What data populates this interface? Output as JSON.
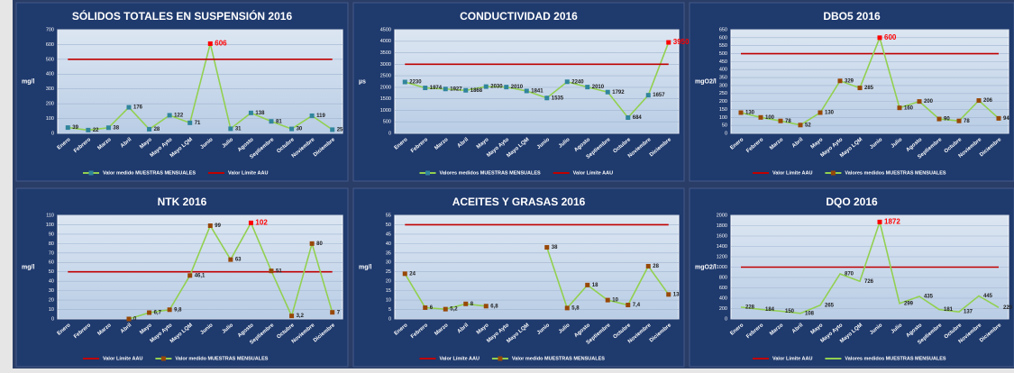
{
  "chart_data": [
    {
      "type": "line",
      "title": "SÓLIDOS TOTALES EN SUSPENSIÓN 2016",
      "y_label": "mg/l",
      "categories": [
        "Enero",
        "Febrero",
        "Marzo",
        "Abril",
        "Mayo",
        "Mayo Ayto",
        "Mayo LQM",
        "Junio",
        "Julio",
        "Agosto",
        "Septiembre",
        "Octubre",
        "Noviembre",
        "Diciembre"
      ],
      "ylim": [
        0,
        700
      ],
      "yticks": [
        0,
        100,
        200,
        300,
        400,
        500,
        600,
        700
      ],
      "series": [
        {
          "name": "Valor medido MUESTRAS MENSUALES",
          "color": "#92d050",
          "marker_color": "#31859c",
          "highlight_color": "#ff0000",
          "values": [
            39,
            22,
            38,
            176,
            28,
            122,
            71,
            606,
            31,
            138,
            81,
            30,
            119,
            25
          ]
        },
        {
          "name": "Valor Límite AAU",
          "color": "#c00000",
          "values": [
            500,
            500,
            500,
            500,
            500,
            500,
            500,
            500,
            500,
            500,
            500,
            500,
            500,
            500
          ]
        }
      ]
    },
    {
      "type": "line",
      "title": "CONDUCTIVIDAD 2016",
      "y_label": "µs",
      "categories": [
        "Enero",
        "Febrero",
        "Marzo",
        "Abril",
        "Mayo",
        "Mayo Ayto",
        "Mayo LQM",
        "Junio",
        "Julio",
        "Agosto",
        "Septiembre",
        "Octubre",
        "Noviembre",
        "Diciembre"
      ],
      "ylim": [
        0,
        4500
      ],
      "yticks": [
        0,
        500,
        1000,
        1500,
        2000,
        2500,
        3000,
        3500,
        4000,
        4500
      ],
      "series": [
        {
          "name": "Valores medidos MUESTRAS MENSUALES",
          "color": "#92d050",
          "marker_color": "#31859c",
          "highlight_color": "#ff0000",
          "values": [
            2230,
            1974,
            1927,
            1868,
            2030,
            2010,
            1841,
            1535,
            2240,
            2010,
            1792,
            684,
            1657,
            3950
          ]
        },
        {
          "name": "Valor Límite AAU",
          "color": "#c00000",
          "values": [
            3000,
            3000,
            3000,
            3000,
            3000,
            3000,
            3000,
            3000,
            3000,
            3000,
            3000,
            3000,
            3000,
            3000
          ]
        }
      ]
    },
    {
      "type": "line",
      "title": "DBO5 2016",
      "y_label": "mgO2/l",
      "categories": [
        "Enero",
        "Febrero",
        "Marzo",
        "Abril",
        "Mayo",
        "Mayo Ayto",
        "Mayo LQM",
        "Junio",
        "Julio",
        "Agosto",
        "Septiembre",
        "Octubre",
        "Noviembre",
        "Diciembre"
      ],
      "ylim": [
        0,
        650
      ],
      "yticks": [
        0,
        50,
        100,
        150,
        200,
        250,
        300,
        350,
        400,
        450,
        500,
        550,
        600,
        650
      ],
      "series": [
        {
          "name": "Valor Límite AAU",
          "color": "#c00000",
          "values": [
            500,
            500,
            500,
            500,
            500,
            500,
            500,
            500,
            500,
            500,
            500,
            500,
            500,
            500
          ]
        },
        {
          "name": "Valores medidos MUESTRAS MENSUALES",
          "color": "#92d050",
          "marker_color": "#984807",
          "highlight_color": "#ff0000",
          "values": [
            130,
            100,
            78,
            52,
            130,
            329,
            285,
            600,
            160,
            200,
            90,
            78,
            206,
            94
          ]
        }
      ]
    },
    {
      "type": "line",
      "title": "NTK 2016",
      "y_label": "mg/l",
      "categories": [
        "Enero",
        "Febrero",
        "Marzo",
        "Abril",
        "Mayo",
        "Mayo Ayto",
        "Mayo LQM",
        "Junio",
        "Julio",
        "Agosto",
        "Septiembre",
        "Octubre",
        "Noviembre",
        "Diciembre"
      ],
      "ylim": [
        0,
        110
      ],
      "yticks": [
        0,
        10,
        20,
        30,
        40,
        50,
        60,
        70,
        80,
        90,
        100,
        110
      ],
      "series": [
        {
          "name": "Valor Límite AAU",
          "color": "#c00000",
          "values": [
            50,
            50,
            50,
            50,
            50,
            50,
            50,
            50,
            50,
            50,
            50,
            50,
            50,
            50
          ]
        },
        {
          "name": "Valor medido MUESTRAS MENSUALES",
          "color": "#92d050",
          "marker_color": "#984807",
          "highlight_color": "#ff0000",
          "values": [
            null,
            null,
            null,
            0,
            6.7,
            9.8,
            46.1,
            99,
            63,
            102,
            51,
            3.2,
            80,
            7
          ],
          "value_labels": [
            null,
            null,
            null,
            "0",
            "6,7",
            "9,8",
            "46,1",
            "99",
            "63",
            "102",
            "51",
            "3,2",
            "80",
            "7"
          ]
        }
      ]
    },
    {
      "type": "line",
      "title": "ACEITES Y GRASAS 2016",
      "y_label": "mg/l",
      "categories": [
        "Enero",
        "Febrero",
        "Marzo",
        "Abril",
        "Mayo",
        "Mayo Ayto",
        "Mayo LQM",
        "Junio",
        "Julio",
        "Agosto",
        "Septiembre",
        "Octubre",
        "Noviembre",
        "Diciembre"
      ],
      "ylim": [
        0,
        55
      ],
      "yticks": [
        0,
        5,
        10,
        15,
        20,
        25,
        30,
        35,
        40,
        45,
        50,
        55
      ],
      "series": [
        {
          "name": "Valor Límite AAU",
          "color": "#c00000",
          "values": [
            50,
            50,
            50,
            50,
            50,
            50,
            50,
            50,
            50,
            50,
            50,
            50,
            50,
            50
          ]
        },
        {
          "name": "Valor medido MUESTRAS MENSUALES",
          "color": "#92d050",
          "marker_color": "#984807",
          "values": [
            24,
            6,
            5.2,
            8,
            6.8,
            null,
            null,
            38,
            5.8,
            18,
            10,
            7.4,
            28,
            13
          ],
          "value_labels": [
            "24",
            "6",
            "5,2",
            "8",
            "6,8",
            null,
            null,
            "38",
            "5,8",
            "18",
            "10",
            "7,4",
            "28",
            "13"
          ]
        }
      ]
    },
    {
      "type": "line",
      "title": "DQO 2016",
      "y_label": "mgO2/l",
      "categories": [
        "Enero",
        "Febrero",
        "Marzo",
        "Abril",
        "Mayo",
        "Mayo Ayto",
        "Mayo LQM",
        "Junio",
        "Julio",
        "Agosto",
        "Septiembre",
        "Octubre",
        "Noviembre",
        "Diciembre"
      ],
      "ylim": [
        0,
        2000
      ],
      "yticks": [
        0,
        200,
        400,
        600,
        800,
        1000,
        1200,
        1400,
        1600,
        1800,
        2000
      ],
      "series": [
        {
          "name": "Valor Límite AAU",
          "color": "#c00000",
          "values": [
            1000,
            1000,
            1000,
            1000,
            1000,
            1000,
            1000,
            1000,
            1000,
            1000,
            1000,
            1000,
            1000,
            1000
          ]
        },
        {
          "name": "Valores medidos MUESTRAS MENSUALES",
          "color": "#92d050",
          "highlight_color": "#ff0000",
          "values": [
            228,
            184,
            150,
            108,
            265,
            870,
            726,
            1872,
            299,
            435,
            181,
            137,
            445,
            220
          ]
        }
      ]
    }
  ]
}
